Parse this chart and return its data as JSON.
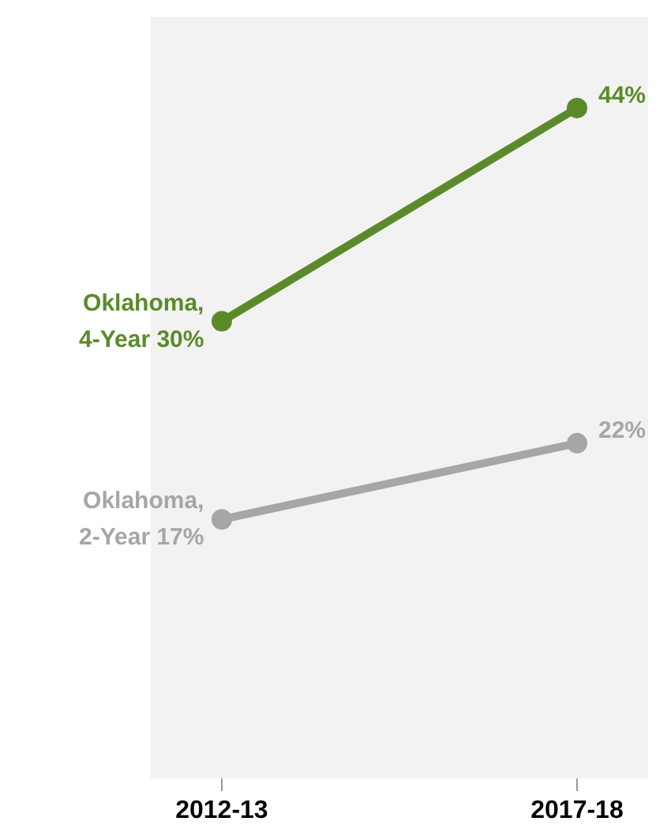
{
  "chart_data": {
    "type": "line",
    "categories": [
      "2012-13",
      "2017-18"
    ],
    "ylim": [
      0,
      50
    ],
    "tick_labels": "x",
    "marker": "circle",
    "line_style": "solid",
    "series": [
      {
        "name": "Oklahoma, 4-Year",
        "color": "#5b8a2b",
        "values": [
          30,
          44
        ],
        "value_labels": [
          "30%",
          "44%"
        ]
      },
      {
        "name": "Oklahoma, 2-Year",
        "color": "#a6a6a6",
        "values": [
          17,
          22
        ],
        "value_labels": [
          "17%",
          "22%"
        ]
      }
    ]
  }
}
